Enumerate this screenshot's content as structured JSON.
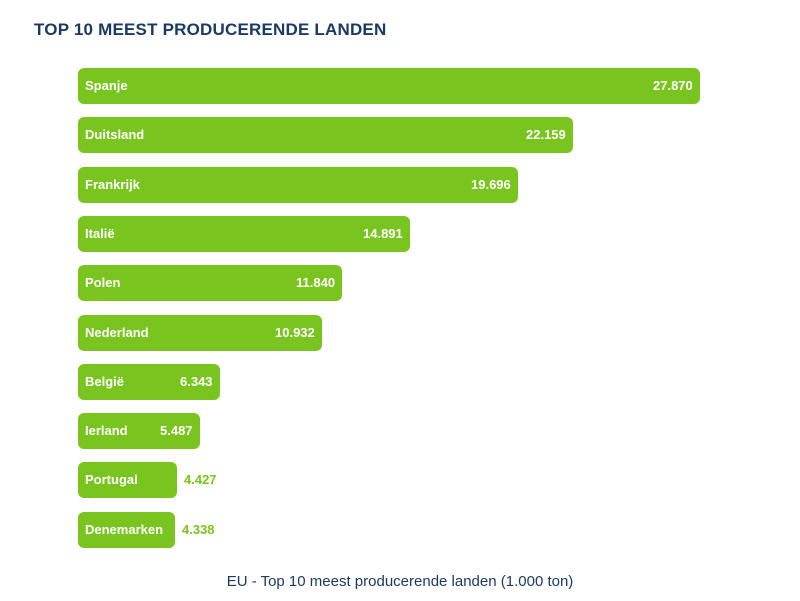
{
  "chart_data": {
    "type": "bar",
    "orientation": "horizontal",
    "title": "TOP 10 MEEST PRODUCERENDE LANDEN",
    "caption": "EU - Top 10 meest producerende landen (1.000 ton)",
    "categories": [
      "Spanje",
      "Duitsland",
      "Frankrijk",
      "Italië",
      "Polen",
      "Nederland",
      "België",
      "Ierland",
      "Portugal",
      "Denemarken"
    ],
    "values": [
      27870,
      22159,
      19696,
      14891,
      11840,
      10932,
      6343,
      5487,
      4427,
      4338
    ],
    "value_labels": [
      "27.870",
      "22.159",
      "19.696",
      "14.891",
      "11.840",
      "10.932",
      "6.343",
      "5.487",
      "4.427",
      "4.338"
    ],
    "bar_color": "#7ac41f",
    "title_color": "#1b3a63",
    "grid": false,
    "legend": "none"
  }
}
